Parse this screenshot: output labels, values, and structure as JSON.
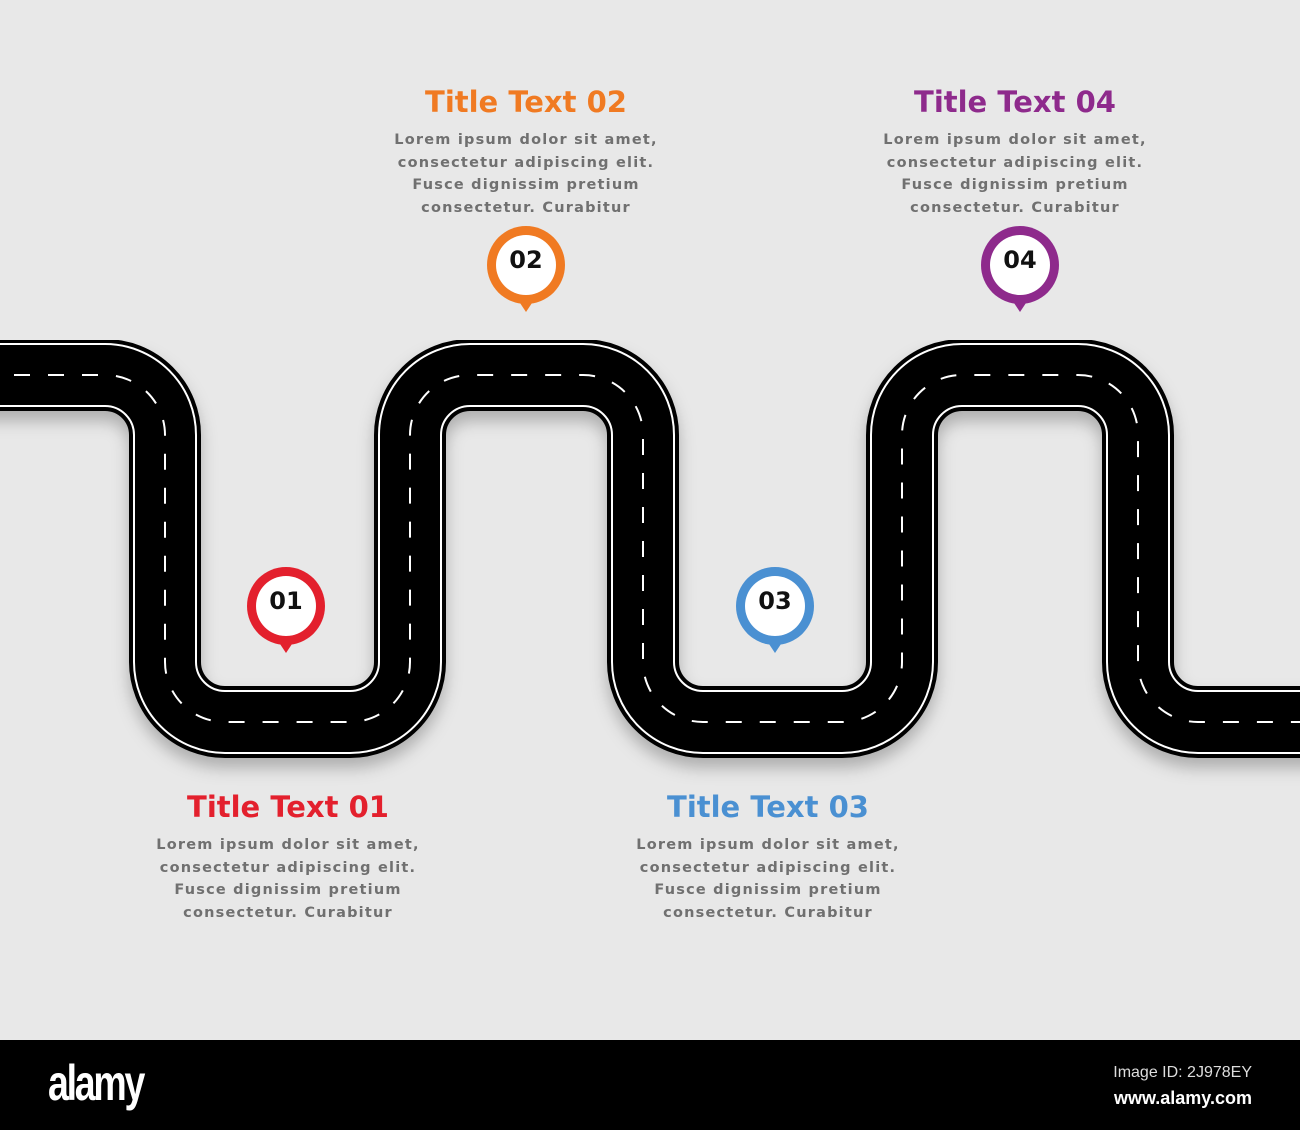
{
  "background_color": "#e8e8e8",
  "steps": [
    {
      "number": "01",
      "title": "Title Text 01",
      "color": "#e3202d",
      "body": [
        "Lorem ipsum dolor sit amet,",
        "consectetur adipiscing elit.",
        "Fusce dignissim pretium",
        "consectetur. Curabitur"
      ]
    },
    {
      "number": "02",
      "title": "Title Text 02",
      "color": "#f07a22",
      "body": [
        "Lorem ipsum dolor sit amet,",
        "consectetur adipiscing elit.",
        "Fusce dignissim pretium",
        "consectetur. Curabitur"
      ]
    },
    {
      "number": "03",
      "title": "Title Text 03",
      "color": "#4a90d2",
      "body": [
        "Lorem ipsum dolor sit amet,",
        "consectetur adipiscing elit.",
        "Fusce dignissim pretium",
        "consectetur. Curabitur"
      ]
    },
    {
      "number": "04",
      "title": "Title Text 04",
      "color": "#8e2a8c",
      "body": [
        "Lorem ipsum dolor sit amet,",
        "consectetur adipiscing elit.",
        "Fusce dignissim pretium",
        "consectetur. Curabitur"
      ]
    }
  ],
  "footer": {
    "logo": "alamy",
    "image_id": "Image ID: 2J978EY",
    "url": "www.alamy.com"
  }
}
